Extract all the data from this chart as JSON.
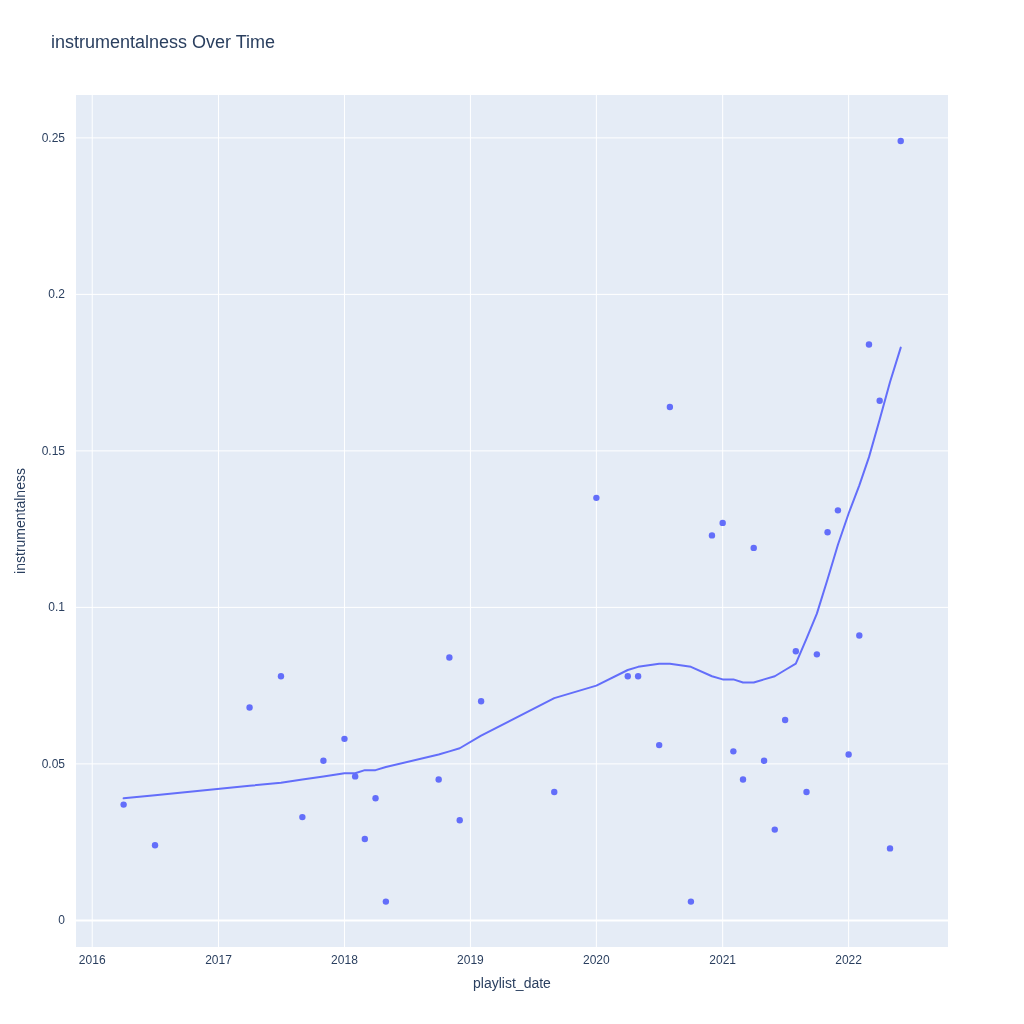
{
  "chart_data": {
    "type": "scatter",
    "title": "instrumentalness Over Time",
    "xlabel": "playlist_date",
    "ylabel": "instrumentalness",
    "x": [
      "2016-04",
      "2016-07",
      "2017-04",
      "2017-07",
      "2017-09",
      "2017-11",
      "2018-01",
      "2018-02",
      "2018-03",
      "2018-04",
      "2018-05",
      "2018-10",
      "2018-11",
      "2018-12",
      "2019-02",
      "2019-09",
      "2020-01",
      "2020-04",
      "2020-05",
      "2020-07",
      "2020-08",
      "2020-10",
      "2020-12",
      "2021-01",
      "2021-02",
      "2021-03",
      "2021-04",
      "2021-05",
      "2021-06",
      "2021-07",
      "2021-08",
      "2021-09",
      "2021-10",
      "2021-11",
      "2021-12",
      "2022-01",
      "2022-02",
      "2022-03",
      "2022-04",
      "2022-05",
      "2022-06"
    ],
    "series": [
      {
        "color": "#636efa",
        "values": [
          0.037,
          0.024,
          0.068,
          0.078,
          0.033,
          0.051,
          0.058,
          0.046,
          0.026,
          0.039,
          0.006,
          0.045,
          0.084,
          0.032,
          0.07,
          0.041,
          0.135,
          0.078,
          0.078,
          0.056,
          0.164,
          0.006,
          0.123,
          0.127,
          0.054,
          0.045,
          0.119,
          0.051,
          0.029,
          0.064,
          0.086,
          0.041,
          0.085,
          0.124,
          0.131,
          0.053,
          0.091,
          0.184,
          0.166,
          0.023,
          0.249
        ]
      },
      {
        "type": "line",
        "color": "#636efa",
        "marker": "none",
        "line_style": "solid",
        "values": [
          0.039,
          0.04,
          0.043,
          0.044,
          0.045,
          0.046,
          0.047,
          0.047,
          0.048,
          0.048,
          0.049,
          0.053,
          0.054,
          0.055,
          0.059,
          0.071,
          0.075,
          0.08,
          0.081,
          0.082,
          0.082,
          0.081,
          0.078,
          0.077,
          0.077,
          0.076,
          0.076,
          0.077,
          0.078,
          0.08,
          0.082,
          0.09,
          0.098,
          0.109,
          0.12,
          0.13,
          0.139,
          0.148,
          0.16,
          0.172,
          0.183
        ]
      }
    ],
    "xlim": [
      "2015-11-15",
      "2022-10-16"
    ],
    "xticks": [
      "2016",
      "2017",
      "2018",
      "2019",
      "2020",
      "2021",
      "2022"
    ],
    "ylim": [
      -0.0085,
      0.2637
    ],
    "yticks": [
      0,
      0.05,
      0.1,
      0.15,
      0.2,
      0.25
    ],
    "grid": true,
    "marker": "circle"
  }
}
